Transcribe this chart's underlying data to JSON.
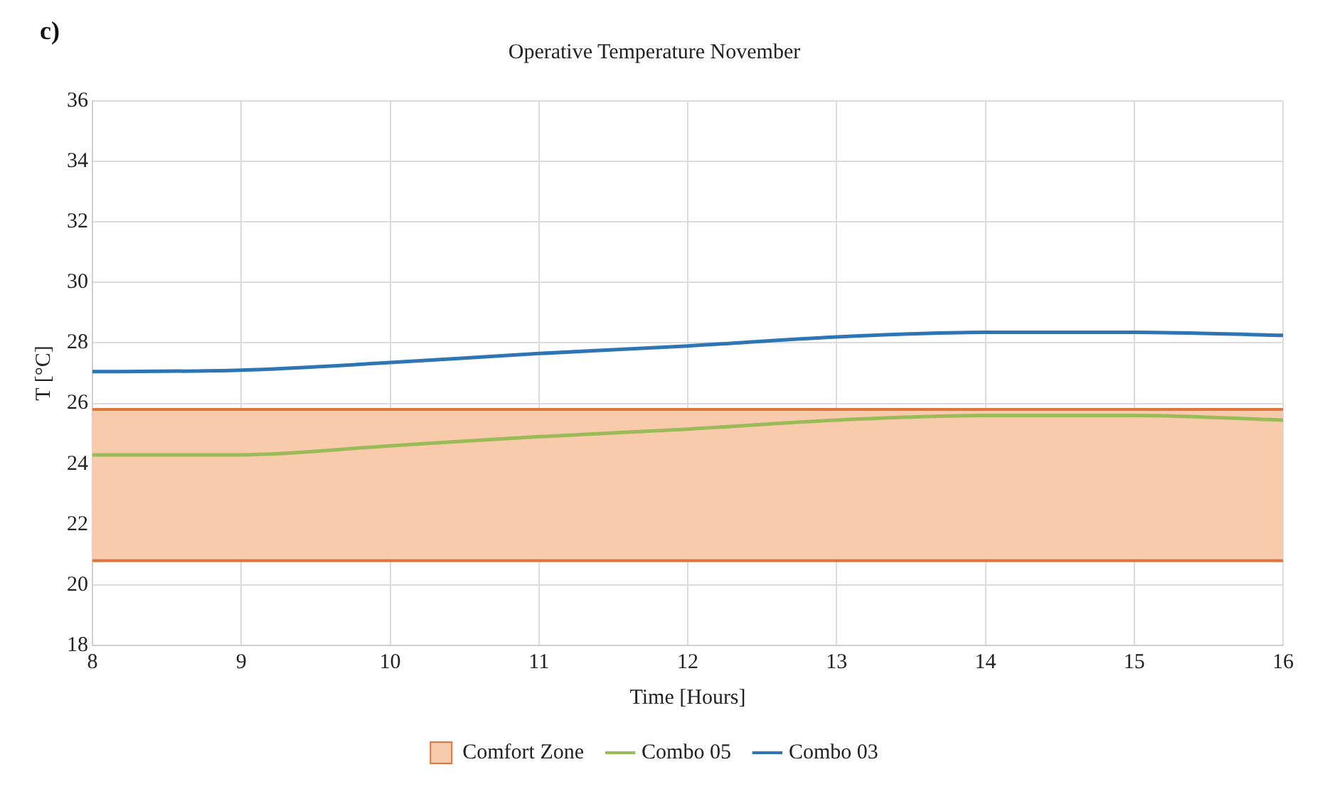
{
  "chart_data": {
    "type": "line",
    "title": "Operative Temperature November",
    "xlabel": "Time [Hours]",
    "ylabel": "T [°C]",
    "annotations": [
      "c)"
    ],
    "x": [
      8,
      9,
      10,
      11,
      12,
      13,
      14,
      15,
      16
    ],
    "series": [
      {
        "name": "Combo 05",
        "color": "#9bbb59",
        "values": [
          24.3,
          24.3,
          24.6,
          24.9,
          25.15,
          25.45,
          25.6,
          25.6,
          25.45
        ]
      },
      {
        "name": "Combo 03",
        "color": "#2e75b6",
        "values": [
          27.05,
          27.1,
          27.35,
          27.65,
          27.9,
          28.2,
          28.35,
          28.35,
          28.25
        ]
      }
    ],
    "bands": [
      {
        "axis": "y",
        "from": 20.8,
        "to": 25.8,
        "label": "Comfort Zone",
        "color": "#f8cbad"
      }
    ],
    "ref_lines": [
      {
        "axis": "y",
        "value": 25.8,
        "color": "#e2733a",
        "line_style": "solid"
      },
      {
        "axis": "y",
        "value": 20.8,
        "color": "#e2733a",
        "line_style": "solid"
      }
    ],
    "xlim": [
      8,
      16
    ],
    "xticks": [
      8,
      9,
      10,
      11,
      12,
      13,
      14,
      15,
      16
    ],
    "ylim": [
      18,
      36
    ],
    "yticks": [
      18,
      20,
      22,
      24,
      26,
      28,
      30,
      32,
      34,
      36
    ],
    "grid": true,
    "legend": "bottom",
    "marker": "none",
    "line_style": "solid"
  }
}
